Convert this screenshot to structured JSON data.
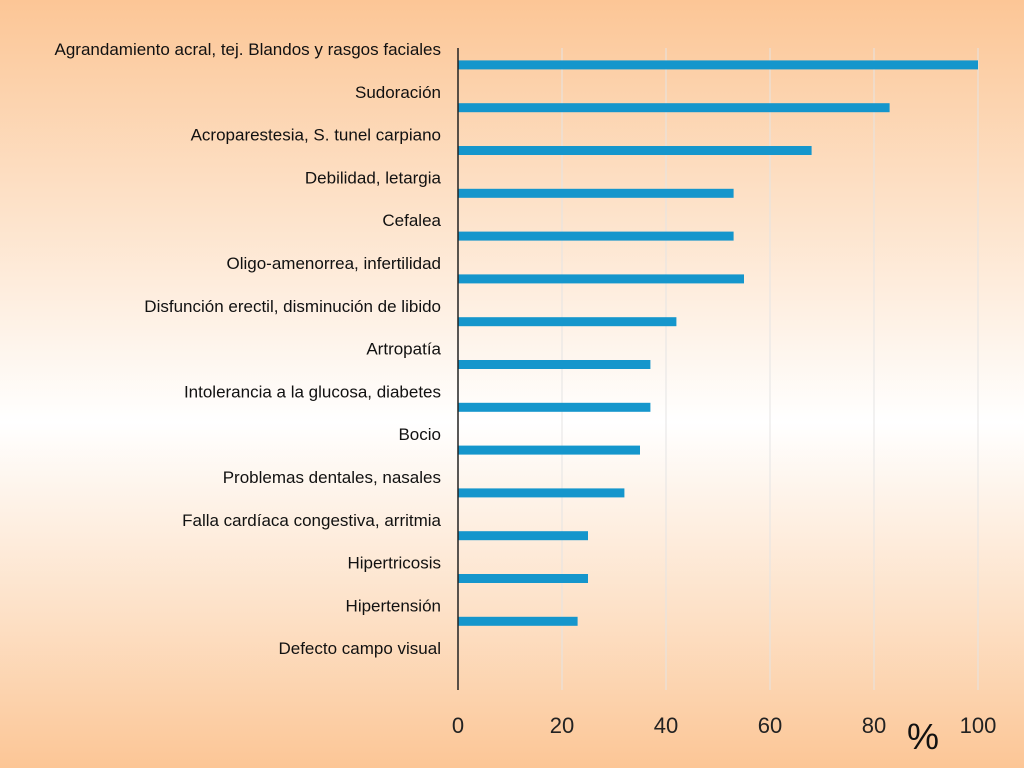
{
  "chart_data": {
    "type": "bar",
    "orientation": "horizontal",
    "categories": [
      "Agrandamiento acral, tej. Blandos y rasgos faciales",
      "Sudoración",
      "Acroparestesia, S. tunel carpiano",
      "Debilidad, letargia",
      "Cefalea",
      "Oligo-amenorrea, infertilidad",
      "Disfunción erectil, disminución de libido",
      "Artropatía",
      "Intolerancia a la glucosa, diabetes",
      "Bocio",
      "Problemas dentales, nasales",
      "Falla cardíaca congestiva, arritmia",
      "Hipertricosis",
      "Hipertensión",
      "Defecto campo visual"
    ],
    "values": [
      100,
      83,
      68,
      53,
      53,
      55,
      42,
      37,
      37,
      35,
      32,
      25,
      25,
      23,
      null
    ],
    "xlim": [
      0,
      100
    ],
    "xticks": [
      "0",
      "20",
      "40",
      "60",
      "80",
      "100"
    ],
    "xlabel": "%",
    "grid": "vertical",
    "bar_color": "#1596cc",
    "axis_color": "#222222",
    "grid_color": "#e4e4e4"
  }
}
